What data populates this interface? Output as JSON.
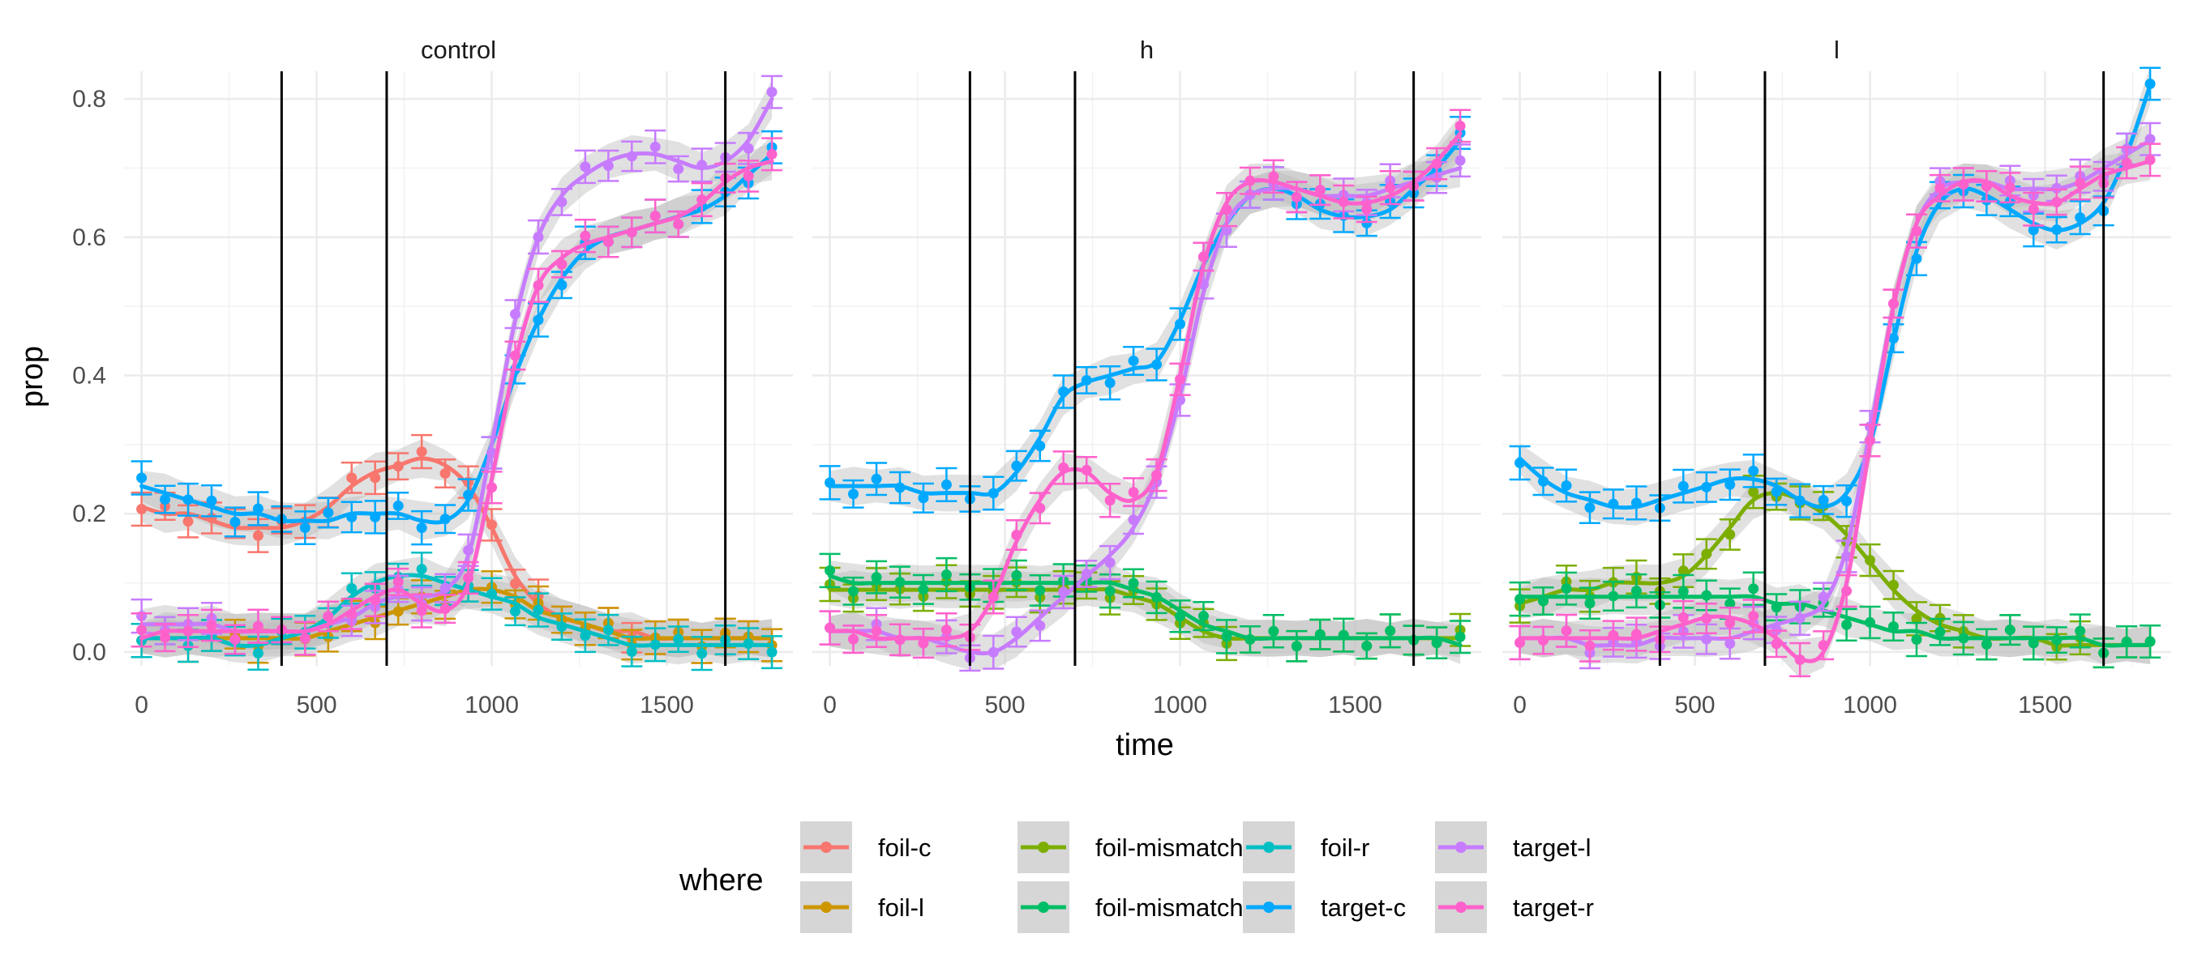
{
  "chart_data": {
    "type": "line",
    "xlabel": "time",
    "ylabel": "prop",
    "xlim": [
      -50,
      1860
    ],
    "ylim": [
      -0.02,
      0.84
    ],
    "x_ticks": [
      0,
      500,
      1000,
      1500
    ],
    "x_tick_labels": [
      "0",
      "500",
      "1000",
      "1500"
    ],
    "y_ticks": [
      0.0,
      0.2,
      0.4,
      0.6,
      0.8
    ],
    "y_tick_labels": [
      "0.0",
      "0.2",
      "0.4",
      "0.6",
      "0.8"
    ],
    "grid": true,
    "smooth_ribbon_color": "#bdbdbd",
    "vertical_lines": [
      400,
      700,
      1667
    ],
    "legend": {
      "title": "where",
      "placement": "bottom",
      "entries": [
        {
          "key": "foil-c",
          "label": "foil-c",
          "color": "#F8766D"
        },
        {
          "key": "foil-l",
          "label": "foil-l",
          "color": "#CD9600"
        },
        {
          "key": "foil-mismatch1",
          "label": "foil-mismatch1",
          "color": "#7CAE00"
        },
        {
          "key": "foil-mismatch2",
          "label": "foil-mismatch2",
          "color": "#00BE67"
        },
        {
          "key": "foil-r",
          "label": "foil-r",
          "color": "#00BFC4"
        },
        {
          "key": "target-c",
          "label": "target-c",
          "color": "#00A9FF"
        },
        {
          "key": "target-l",
          "label": "target-l",
          "color": "#C77CFF"
        },
        {
          "key": "target-r",
          "label": "target-r",
          "color": "#FF61CC"
        }
      ]
    },
    "x": [
      0,
      67,
      133,
      200,
      267,
      333,
      400,
      467,
      533,
      600,
      667,
      733,
      800,
      867,
      933,
      1000,
      1067,
      1133,
      1200,
      1267,
      1333,
      1400,
      1467,
      1533,
      1600,
      1667,
      1733,
      1800
    ],
    "panels": [
      {
        "title": "control",
        "series": [
          {
            "key": "foil-c",
            "values": [
              0.21,
              0.2,
              0.2,
              0.19,
              0.18,
              0.18,
              0.18,
              0.19,
              0.21,
              0.24,
              0.26,
              0.27,
              0.28,
              0.27,
              0.24,
              0.18,
              0.11,
              0.07,
              0.05,
              0.04,
              0.03,
              0.03,
              0.02,
              0.02,
              0.02,
              0.02,
              0.02,
              0.02
            ]
          },
          {
            "key": "foil-l",
            "values": [
              0.02,
              0.02,
              0.02,
              0.02,
              0.02,
              0.02,
              0.02,
              0.02,
              0.03,
              0.04,
              0.05,
              0.06,
              0.07,
              0.08,
              0.09,
              0.09,
              0.08,
              0.06,
              0.05,
              0.04,
              0.03,
              0.02,
              0.02,
              0.02,
              0.02,
              0.02,
              0.02,
              0.02
            ]
          },
          {
            "key": "foil-r",
            "values": [
              0.02,
              0.02,
              0.02,
              0.02,
              0.01,
              0.01,
              0.02,
              0.03,
              0.05,
              0.08,
              0.1,
              0.11,
              0.11,
              0.1,
              0.09,
              0.08,
              0.07,
              0.05,
              0.04,
              0.03,
              0.02,
              0.01,
              0.01,
              0.01,
              0.01,
              0.01,
              0.01,
              0.01
            ]
          },
          {
            "key": "target-c",
            "values": [
              0.24,
              0.23,
              0.22,
              0.21,
              0.2,
              0.2,
              0.19,
              0.19,
              0.19,
              0.2,
              0.2,
              0.2,
              0.19,
              0.19,
              0.22,
              0.3,
              0.4,
              0.48,
              0.54,
              0.58,
              0.6,
              0.61,
              0.62,
              0.63,
              0.64,
              0.66,
              0.69,
              0.72
            ]
          },
          {
            "key": "target-l",
            "values": [
              0.04,
              0.04,
              0.04,
              0.04,
              0.03,
              0.03,
              0.03,
              0.03,
              0.04,
              0.05,
              0.07,
              0.08,
              0.08,
              0.09,
              0.14,
              0.3,
              0.48,
              0.6,
              0.66,
              0.69,
              0.71,
              0.72,
              0.72,
              0.71,
              0.7,
              0.71,
              0.74,
              0.8
            ]
          },
          {
            "key": "target-r",
            "values": [
              0.02,
              0.03,
              0.03,
              0.03,
              0.03,
              0.03,
              0.03,
              0.03,
              0.04,
              0.06,
              0.08,
              0.09,
              0.07,
              0.06,
              0.1,
              0.25,
              0.42,
              0.53,
              0.57,
              0.59,
              0.6,
              0.61,
              0.62,
              0.63,
              0.65,
              0.68,
              0.7,
              0.71
            ]
          }
        ]
      },
      {
        "title": "h",
        "series": [
          {
            "key": "foil-mismatch1",
            "values": [
              0.09,
              0.09,
              0.09,
              0.09,
              0.09,
              0.09,
              0.09,
              0.09,
              0.09,
              0.09,
              0.09,
              0.09,
              0.09,
              0.08,
              0.07,
              0.05,
              0.03,
              0.02,
              0.02,
              0.02,
              0.02,
              0.02,
              0.02,
              0.02,
              0.02,
              0.02,
              0.02,
              0.02
            ]
          },
          {
            "key": "foil-mismatch2",
            "values": [
              0.11,
              0.1,
              0.1,
              0.1,
              0.1,
              0.1,
              0.1,
              0.1,
              0.1,
              0.1,
              0.1,
              0.1,
              0.1,
              0.09,
              0.08,
              0.06,
              0.04,
              0.03,
              0.02,
              0.02,
              0.02,
              0.02,
              0.02,
              0.02,
              0.02,
              0.02,
              0.02,
              0.01
            ]
          },
          {
            "key": "target-c",
            "values": [
              0.24,
              0.24,
              0.24,
              0.24,
              0.23,
              0.23,
              0.23,
              0.23,
              0.26,
              0.31,
              0.37,
              0.39,
              0.4,
              0.41,
              0.42,
              0.48,
              0.56,
              0.62,
              0.66,
              0.67,
              0.66,
              0.64,
              0.63,
              0.63,
              0.64,
              0.67,
              0.7,
              0.74
            ]
          },
          {
            "key": "target-l",
            "values": [
              0.03,
              0.03,
              0.03,
              0.02,
              0.02,
              0.01,
              0.0,
              0.0,
              0.02,
              0.05,
              0.08,
              0.11,
              0.14,
              0.18,
              0.25,
              0.37,
              0.52,
              0.62,
              0.66,
              0.67,
              0.67,
              0.66,
              0.66,
              0.66,
              0.67,
              0.68,
              0.69,
              0.7
            ]
          },
          {
            "key": "target-r",
            "values": [
              0.03,
              0.03,
              0.02,
              0.02,
              0.02,
              0.02,
              0.03,
              0.08,
              0.16,
              0.22,
              0.26,
              0.26,
              0.23,
              0.22,
              0.26,
              0.4,
              0.56,
              0.65,
              0.68,
              0.68,
              0.67,
              0.66,
              0.65,
              0.65,
              0.66,
              0.68,
              0.71,
              0.75
            ]
          }
        ]
      },
      {
        "title": "l",
        "series": [
          {
            "key": "foil-mismatch1",
            "values": [
              0.07,
              0.08,
              0.09,
              0.09,
              0.1,
              0.1,
              0.1,
              0.11,
              0.14,
              0.18,
              0.22,
              0.23,
              0.22,
              0.2,
              0.17,
              0.13,
              0.09,
              0.06,
              0.04,
              0.03,
              0.02,
              0.02,
              0.02,
              0.01,
              0.01,
              0.01,
              0.01,
              0.01
            ]
          },
          {
            "key": "foil-mismatch2",
            "values": [
              0.08,
              0.08,
              0.08,
              0.08,
              0.08,
              0.08,
              0.08,
              0.08,
              0.08,
              0.08,
              0.08,
              0.07,
              0.07,
              0.06,
              0.05,
              0.04,
              0.03,
              0.03,
              0.02,
              0.02,
              0.02,
              0.02,
              0.02,
              0.02,
              0.02,
              0.01,
              0.01,
              0.01
            ]
          },
          {
            "key": "target-c",
            "values": [
              0.28,
              0.25,
              0.23,
              0.22,
              0.21,
              0.21,
              0.22,
              0.23,
              0.24,
              0.25,
              0.25,
              0.24,
              0.22,
              0.21,
              0.23,
              0.3,
              0.45,
              0.58,
              0.65,
              0.67,
              0.66,
              0.64,
              0.62,
              0.61,
              0.62,
              0.65,
              0.72,
              0.82
            ]
          },
          {
            "key": "target-l",
            "values": [
              0.02,
              0.02,
              0.02,
              0.01,
              0.01,
              0.01,
              0.02,
              0.02,
              0.02,
              0.02,
              0.03,
              0.04,
              0.05,
              0.07,
              0.15,
              0.32,
              0.5,
              0.62,
              0.67,
              0.68,
              0.68,
              0.67,
              0.67,
              0.67,
              0.68,
              0.7,
              0.72,
              0.74
            ]
          },
          {
            "key": "target-r",
            "values": [
              0.02,
              0.02,
              0.02,
              0.02,
              0.02,
              0.02,
              0.03,
              0.04,
              0.05,
              0.05,
              0.04,
              0.02,
              -0.01,
              0.0,
              0.1,
              0.3,
              0.5,
              0.62,
              0.66,
              0.68,
              0.68,
              0.66,
              0.65,
              0.65,
              0.67,
              0.69,
              0.7,
              0.71
            ]
          }
        ]
      }
    ]
  }
}
